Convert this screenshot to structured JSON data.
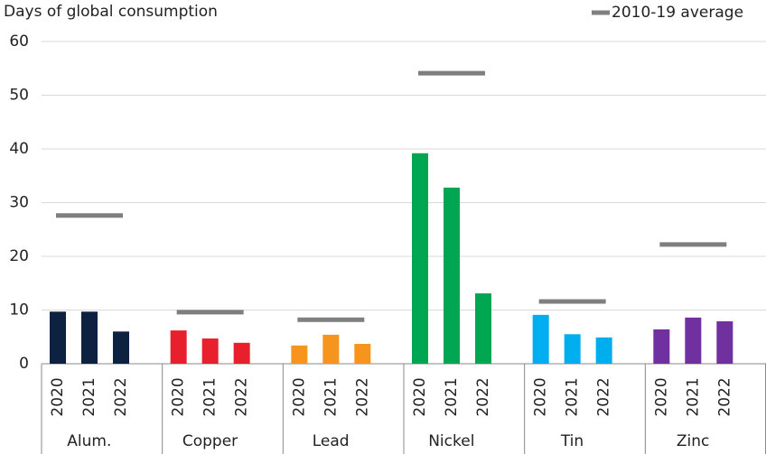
{
  "chart_data": {
    "type": "bar",
    "title": "Days of global consumption",
    "average_name": "2010-19 average",
    "average_color": "#7f7f7f",
    "years": [
      "2020",
      "2021",
      "2022"
    ],
    "groups": [
      {
        "name": "Alum.",
        "color": "#0d2240",
        "values": [
          9.7,
          9.7,
          6.0
        ],
        "average": 27.6
      },
      {
        "name": "Copper",
        "color": "#e8202e",
        "values": [
          6.2,
          4.7,
          3.9
        ],
        "average": 9.6
      },
      {
        "name": "Lead",
        "color": "#f7941d",
        "values": [
          3.4,
          5.4,
          3.7
        ],
        "average": 8.2
      },
      {
        "name": "Nickel",
        "color": "#00a651",
        "values": [
          39.2,
          32.8,
          13.1
        ],
        "average": 54.1
      },
      {
        "name": "Tin",
        "color": "#00aeef",
        "values": [
          9.1,
          5.5,
          4.9
        ],
        "average": 11.6
      },
      {
        "name": "Zinc",
        "color": "#7030a0",
        "values": [
          6.4,
          8.6,
          7.9
        ],
        "average": 22.2
      }
    ],
    "ylim": [
      0,
      60
    ],
    "yticks": [
      0,
      10,
      20,
      30,
      40,
      50,
      60
    ],
    "grid": true
  }
}
